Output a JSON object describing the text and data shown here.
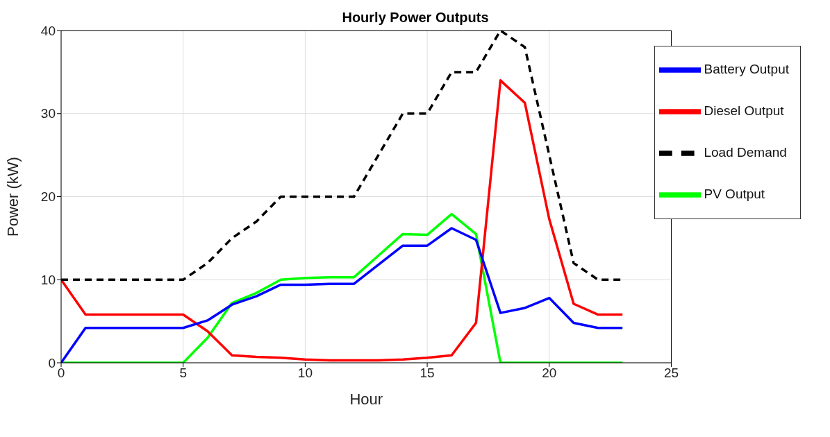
{
  "chart_data": {
    "type": "line",
    "title": "Hourly Power Outputs",
    "xlabel": "Hour",
    "ylabel": "Power (kW)",
    "x": [
      0,
      1,
      2,
      3,
      4,
      5,
      6,
      7,
      8,
      9,
      10,
      11,
      12,
      13,
      14,
      15,
      16,
      17,
      18,
      19,
      20,
      21,
      22,
      23
    ],
    "series": [
      {
        "name": "PV Output",
        "color": "#00ff00",
        "values": [
          0,
          0,
          0,
          0,
          0,
          0,
          3.0,
          7.2,
          8.4,
          10.0,
          10.2,
          10.3,
          10.3,
          12.9,
          15.5,
          15.4,
          17.9,
          15.5,
          0,
          0,
          0,
          0,
          0,
          0
        ]
      },
      {
        "name": "Diesel Output",
        "color": "#ff0000",
        "values": [
          10,
          5.8,
          5.8,
          5.8,
          5.8,
          5.8,
          3.8,
          0.9,
          0.7,
          0.6,
          0.4,
          0.3,
          0.3,
          0.3,
          0.4,
          0.6,
          0.9,
          4.8,
          34,
          31.3,
          17.3,
          7.1,
          5.8,
          5.8
        ]
      },
      {
        "name": "Battery Output",
        "color": "#0000ff",
        "values": [
          0,
          4.2,
          4.2,
          4.2,
          4.2,
          4.2,
          5.1,
          7.0,
          8.0,
          9.4,
          9.4,
          9.5,
          9.5,
          11.8,
          14.1,
          14.1,
          16.2,
          14.8,
          6.0,
          6.6,
          7.8,
          4.8,
          4.2,
          4.2
        ]
      },
      {
        "name": "Load Demand",
        "color": "#000000",
        "line_style": "dashed",
        "values": [
          10,
          10,
          10,
          10,
          10,
          10,
          12,
          15,
          17,
          20,
          20,
          20,
          20,
          25,
          30,
          30,
          35,
          35,
          40,
          38,
          25,
          12,
          10,
          10
        ]
      }
    ],
    "xlim": [
      0,
      25
    ],
    "xticks": [
      0,
      5,
      10,
      15,
      20,
      25
    ],
    "ylim": [
      0,
      40
    ],
    "yticks": [
      0,
      10,
      20,
      30,
      40
    ],
    "grid": true,
    "legend": "top right",
    "marker": "none",
    "line_style": "solid"
  }
}
